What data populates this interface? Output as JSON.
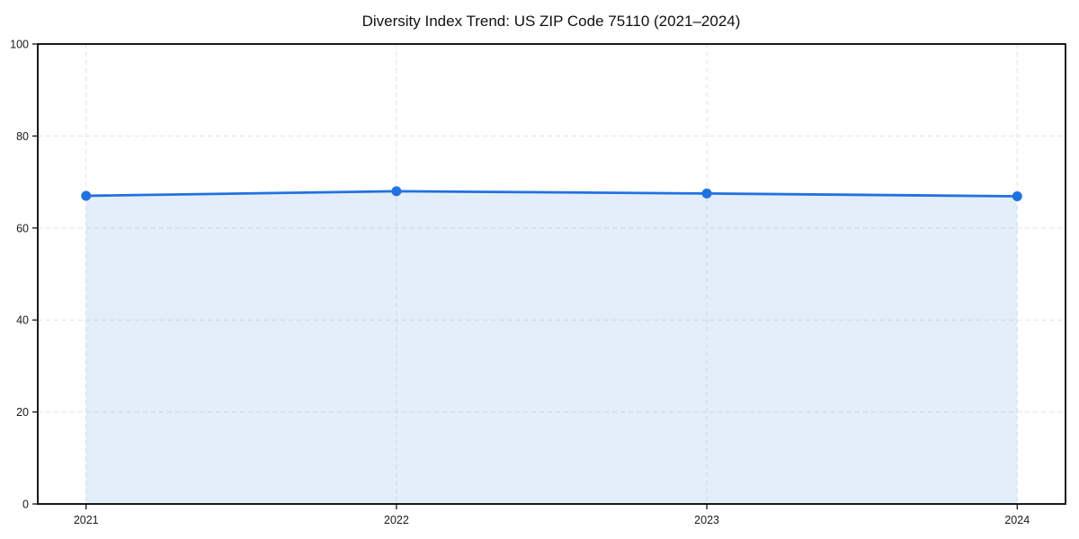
{
  "chart_data": {
    "type": "line",
    "title": "Diversity Index Trend: US ZIP Code 75110 (2021–2024)",
    "categories": [
      "2021",
      "2022",
      "2023",
      "2024"
    ],
    "values": [
      67,
      68,
      67.5,
      66.9
    ],
    "series_name": "Diversity Index",
    "xlabel": "",
    "ylabel": "",
    "ylim": [
      0,
      100
    ],
    "yticks": [
      0,
      20,
      40,
      60,
      80,
      100
    ],
    "grid": true,
    "grid_style": "dashed",
    "legend_position": "none",
    "area_fill": true,
    "colors": {
      "line": "#2271e0",
      "marker": "#2271e0",
      "area": "rgba(34, 113, 224, 0.12)",
      "grid": "#e2e2e2",
      "axis": "#000000",
      "tick_text": "#1a1a1a",
      "background": "#ffffff"
    }
  }
}
